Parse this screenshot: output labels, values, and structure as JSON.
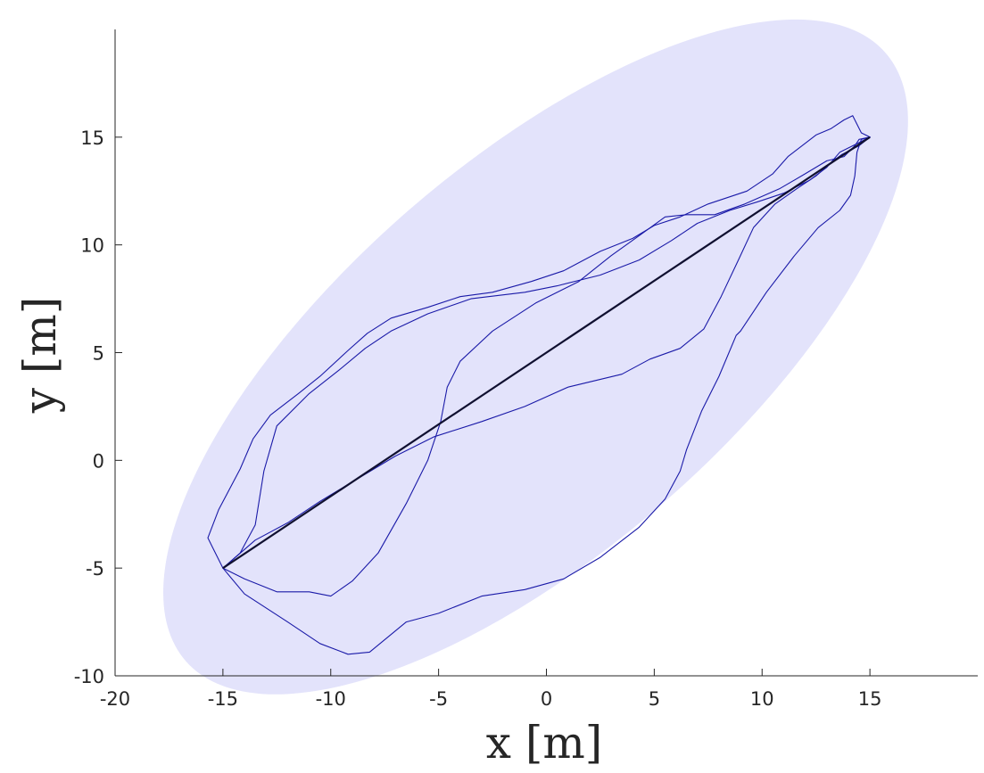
{
  "chart_data": {
    "type": "line",
    "title": "",
    "xlabel": "x [m]",
    "ylabel": "y [m]",
    "xlim": [
      -20,
      20
    ],
    "ylim": [
      -10,
      20
    ],
    "xticks": [
      -20,
      -15,
      -10,
      -5,
      0,
      5,
      10,
      15
    ],
    "yticks": [
      -10,
      -5,
      0,
      5,
      10,
      15
    ],
    "xtick_labels": [
      "-20",
      "-15",
      "-10",
      "-5",
      "0",
      "5",
      "10",
      "15"
    ],
    "ytick_labels": [
      "-10",
      "-5",
      "0",
      "5",
      "10",
      "15"
    ],
    "grid": false,
    "legend": "none",
    "colors": {
      "region": "#e3e3fb",
      "trajectory": "#1a1aa8",
      "straight_path": "#101030",
      "axis": "#262626"
    },
    "region": {
      "shape": "ellipse",
      "center": [
        -0.5,
        4.8
      ],
      "semi_axes": [
        21.5,
        9.0
      ],
      "rotation_deg": 41
    },
    "straight_path": {
      "x": [
        -15,
        15
      ],
      "y": [
        -5,
        15
      ]
    },
    "series": [
      {
        "x": [
          -15,
          -15.5,
          -15.7,
          -15.2,
          -14.2,
          -13.6,
          -12.8,
          -11.5,
          -10.5,
          -9.2,
          -8.3,
          -7.2,
          -5.5,
          -4.0,
          -2.5,
          -0.7,
          0.8,
          2.5,
          4.0,
          5.0,
          6.2,
          7.5,
          9.3,
          10.5,
          11.2,
          12.5,
          13.2,
          13.8,
          14.2,
          14.6,
          15.0
        ],
        "y": [
          -5,
          -4.0,
          -3.6,
          -2.3,
          -0.4,
          1.0,
          2.1,
          3.1,
          3.9,
          5.1,
          5.9,
          6.6,
          7.1,
          7.6,
          7.8,
          8.3,
          8.8,
          9.7,
          10.3,
          10.9,
          11.3,
          11.9,
          12.5,
          13.3,
          14.1,
          15.1,
          15.4,
          15.8,
          16.0,
          15.2,
          15.0
        ]
      },
      {
        "x": [
          -15,
          -14.2,
          -13.5,
          -13.1,
          -12.5,
          -11.0,
          -9.6,
          -8.4,
          -7.2,
          -5.5,
          -3.5,
          -1.0,
          0.5,
          2.5,
          4.3,
          5.8,
          7.0,
          8.5,
          9.8,
          11.0,
          12.2,
          13.0,
          13.6,
          14.4,
          15.0
        ],
        "y": [
          -5,
          -4.3,
          -3.0,
          -0.5,
          1.6,
          3.1,
          4.2,
          5.2,
          6.0,
          6.8,
          7.5,
          7.8,
          8.1,
          8.6,
          9.3,
          10.2,
          11.0,
          11.6,
          12.0,
          12.4,
          13.0,
          13.6,
          14.3,
          14.7,
          15.0
        ]
      },
      {
        "x": [
          -15,
          -13.5,
          -12.0,
          -10.5,
          -9.0,
          -7.0,
          -5.2,
          -3.0,
          -1.0,
          1.0,
          3.5,
          4.8,
          6.2,
          7.3,
          8.1,
          8.9,
          9.6,
          10.6,
          11.6,
          12.5,
          13.3,
          13.7,
          14.5,
          15.0
        ],
        "y": [
          -5,
          -3.7,
          -2.9,
          -1.9,
          -1.0,
          0.2,
          1.1,
          1.8,
          2.5,
          3.4,
          4.0,
          4.7,
          5.2,
          6.1,
          7.6,
          9.3,
          10.8,
          11.9,
          12.6,
          13.2,
          13.9,
          14.2,
          14.6,
          15.0
        ]
      },
      {
        "x": [
          -15,
          -14.0,
          -12.5,
          -11.0,
          -10.0,
          -9.0,
          -7.8,
          -6.5,
          -5.5,
          -4.9,
          -4.6,
          -4.0,
          -2.5,
          -0.5,
          1.5,
          3.0,
          4.4,
          5.5,
          6.5,
          7.8,
          9.2,
          10.8,
          12.0,
          13.0,
          13.8,
          14.3,
          14.5,
          15.0
        ],
        "y": [
          -5,
          -5.5,
          -6.1,
          -6.1,
          -6.3,
          -5.6,
          -4.3,
          -2.0,
          0.0,
          1.8,
          3.4,
          4.6,
          6.0,
          7.3,
          8.3,
          9.5,
          10.5,
          11.3,
          11.4,
          11.4,
          11.9,
          12.6,
          13.3,
          13.9,
          14.1,
          14.6,
          14.9,
          15.0
        ]
      },
      {
        "x": [
          -15,
          -14.0,
          -12.0,
          -10.5,
          -9.2,
          -8.2,
          -6.5,
          -5.0,
          -3.0,
          -1.0,
          0.8,
          2.5,
          4.3,
          5.5,
          6.2,
          6.5,
          7.2,
          8.0,
          8.8,
          9.0,
          10.2,
          11.5,
          12.6,
          13.6,
          14.1,
          14.3,
          14.4,
          14.6,
          15.0
        ],
        "y": [
          -5,
          -6.2,
          -7.5,
          -8.5,
          -9.0,
          -8.9,
          -7.5,
          -7.1,
          -6.3,
          -6.0,
          -5.5,
          -4.5,
          -3.1,
          -1.8,
          -0.5,
          0.5,
          2.3,
          3.9,
          5.8,
          6.0,
          7.8,
          9.5,
          10.8,
          11.6,
          12.3,
          13.2,
          14.3,
          14.9,
          15.0
        ]
      }
    ]
  }
}
